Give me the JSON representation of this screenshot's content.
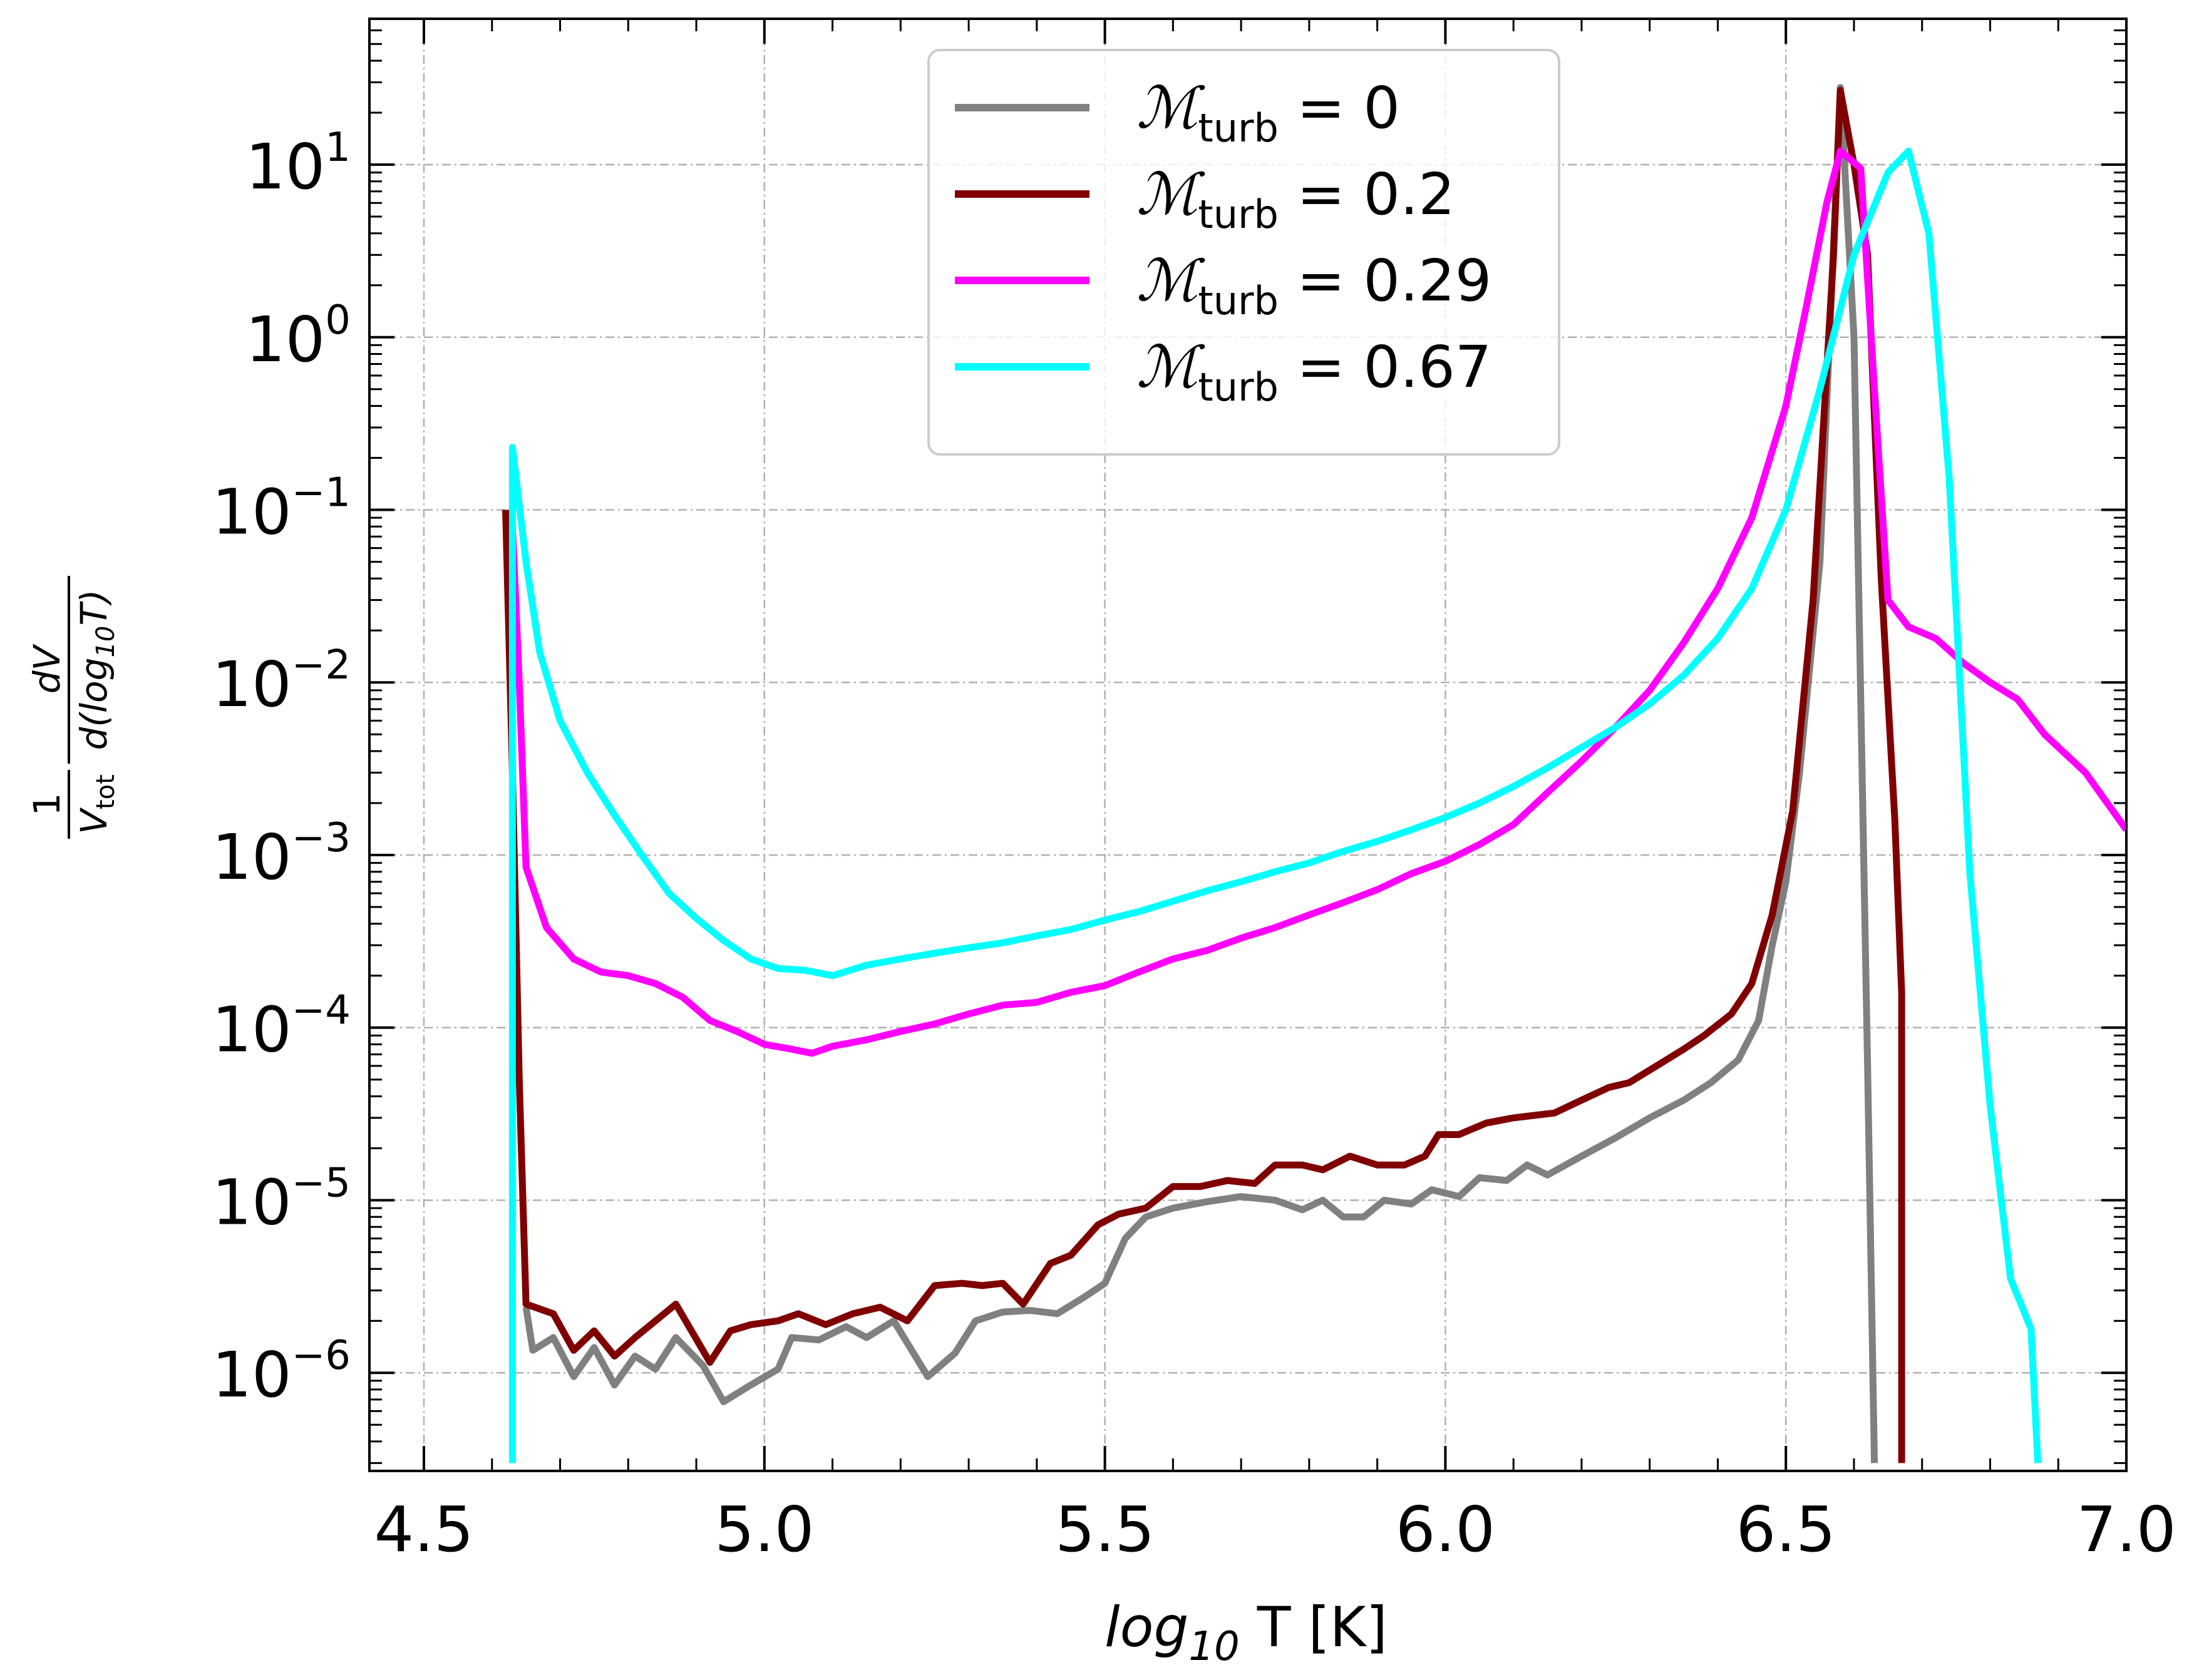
{
  "chart_data": {
    "type": "line",
    "title": "",
    "xlabel": "log10 T [K]",
    "ylabel": "1/V_tot dV/d(log10 T)",
    "xlim": [
      4.42,
      7.0
    ],
    "ylim": [
      2.7e-07,
      70
    ],
    "yscale": "log",
    "grid": true,
    "legend_position": "top-center",
    "x_ticks": [
      4.5,
      5.0,
      5.5,
      6.0,
      6.5,
      7.0
    ],
    "x_tick_labels": [
      "4.5",
      "5.0",
      "5.5",
      "6.0",
      "6.5",
      "7.0"
    ],
    "y_ticks": [
      1e-06,
      1e-05,
      0.0001,
      0.001,
      0.01,
      0.1,
      1,
      10
    ],
    "y_tick_exponents": [
      "−6",
      "−5",
      "−4",
      "−3",
      "−2",
      "−1",
      "0",
      "1"
    ],
    "y_tick_base": "10",
    "series": [
      {
        "name": "M_turb = 0",
        "legend_symbol": "ℳ",
        "legend_sub": "turb",
        "legend_value": "= 0",
        "color": "#808080",
        "points": [
          [
            4.65,
            2.4e-06
          ],
          [
            4.66,
            1.35e-06
          ],
          [
            4.69,
            1.6e-06
          ],
          [
            4.72,
            9.5e-07
          ],
          [
            4.75,
            1.4e-06
          ],
          [
            4.78,
            8.5e-07
          ],
          [
            4.81,
            1.25e-06
          ],
          [
            4.84,
            1.05e-06
          ],
          [
            4.87,
            1.6e-06
          ],
          [
            4.91,
            1.1e-06
          ],
          [
            4.94,
            6.8e-07
          ],
          [
            4.98,
            8.5e-07
          ],
          [
            5.02,
            1.05e-06
          ],
          [
            5.04,
            1.6e-06
          ],
          [
            5.08,
            1.55e-06
          ],
          [
            5.12,
            1.85e-06
          ],
          [
            5.15,
            1.6e-06
          ],
          [
            5.19,
            2e-06
          ],
          [
            5.24,
            9.5e-07
          ],
          [
            5.28,
            1.3e-06
          ],
          [
            5.31,
            2e-06
          ],
          [
            5.35,
            2.25e-06
          ],
          [
            5.39,
            2.3e-06
          ],
          [
            5.43,
            2.2e-06
          ],
          [
            5.47,
            2.75e-06
          ],
          [
            5.5,
            3.3e-06
          ],
          [
            5.53,
            6e-06
          ],
          [
            5.56,
            8e-06
          ],
          [
            5.6,
            9e-06
          ],
          [
            5.65,
            9.8e-06
          ],
          [
            5.7,
            1.05e-05
          ],
          [
            5.75,
            1e-05
          ],
          [
            5.79,
            8.8e-06
          ],
          [
            5.82,
            1e-05
          ],
          [
            5.85,
            8e-06
          ],
          [
            5.88,
            8e-06
          ],
          [
            5.91,
            1e-05
          ],
          [
            5.95,
            9.5e-06
          ],
          [
            5.98,
            1.15e-05
          ],
          [
            6.02,
            1.05e-05
          ],
          [
            6.05,
            1.35e-05
          ],
          [
            6.09,
            1.3e-05
          ],
          [
            6.12,
            1.6e-05
          ],
          [
            6.15,
            1.4e-05
          ],
          [
            6.2,
            1.8e-05
          ],
          [
            6.25,
            2.3e-05
          ],
          [
            6.3,
            3e-05
          ],
          [
            6.35,
            3.8e-05
          ],
          [
            6.39,
            4.8e-05
          ],
          [
            6.43,
            6.5e-05
          ],
          [
            6.46,
            0.00011
          ],
          [
            6.48,
            0.0003
          ],
          [
            6.5,
            0.0007
          ],
          [
            6.52,
            0.003
          ],
          [
            6.55,
            0.05
          ],
          [
            6.58,
            28
          ],
          [
            6.6,
            1.0
          ],
          [
            6.62,
            6e-05
          ],
          [
            6.63,
            3e-07
          ]
        ]
      },
      {
        "name": "M_turb = 0.2",
        "legend_symbol": "ℳ",
        "legend_sub": "turb",
        "legend_value": "= 0.2",
        "color": "#800000",
        "points": [
          [
            4.62,
            0.1
          ],
          [
            4.63,
            0.003
          ],
          [
            4.64,
            5e-05
          ],
          [
            4.65,
            2.5e-06
          ],
          [
            4.69,
            2.2e-06
          ],
          [
            4.72,
            1.35e-06
          ],
          [
            4.75,
            1.75e-06
          ],
          [
            4.78,
            1.25e-06
          ],
          [
            4.81,
            1.6e-06
          ],
          [
            4.84,
            2e-06
          ],
          [
            4.87,
            2.5e-06
          ],
          [
            4.92,
            1.15e-06
          ],
          [
            4.95,
            1.75e-06
          ],
          [
            4.98,
            1.9e-06
          ],
          [
            5.02,
            2e-06
          ],
          [
            5.05,
            2.2e-06
          ],
          [
            5.09,
            1.9e-06
          ],
          [
            5.13,
            2.2e-06
          ],
          [
            5.17,
            2.4e-06
          ],
          [
            5.21,
            2e-06
          ],
          [
            5.25,
            3.2e-06
          ],
          [
            5.29,
            3.3e-06
          ],
          [
            5.32,
            3.2e-06
          ],
          [
            5.35,
            3.3e-06
          ],
          [
            5.38,
            2.5e-06
          ],
          [
            5.42,
            4.3e-06
          ],
          [
            5.45,
            4.8e-06
          ],
          [
            5.49,
            7.2e-06
          ],
          [
            5.52,
            8.3e-06
          ],
          [
            5.56,
            9e-06
          ],
          [
            5.6,
            1.2e-05
          ],
          [
            5.64,
            1.2e-05
          ],
          [
            5.68,
            1.3e-05
          ],
          [
            5.72,
            1.25e-05
          ],
          [
            5.75,
            1.6e-05
          ],
          [
            5.79,
            1.6e-05
          ],
          [
            5.82,
            1.5e-05
          ],
          [
            5.86,
            1.8e-05
          ],
          [
            5.9,
            1.6e-05
          ],
          [
            5.94,
            1.6e-05
          ],
          [
            5.97,
            1.8e-05
          ],
          [
            5.99,
            2.4e-05
          ],
          [
            6.02,
            2.4e-05
          ],
          [
            6.06,
            2.8e-05
          ],
          [
            6.1,
            3e-05
          ],
          [
            6.13,
            3.1e-05
          ],
          [
            6.16,
            3.2e-05
          ],
          [
            6.2,
            3.8e-05
          ],
          [
            6.24,
            4.5e-05
          ],
          [
            6.27,
            4.8e-05
          ],
          [
            6.31,
            6e-05
          ],
          [
            6.35,
            7.5e-05
          ],
          [
            6.38,
            9e-05
          ],
          [
            6.42,
            0.00012
          ],
          [
            6.45,
            0.00018
          ],
          [
            6.48,
            0.00045
          ],
          [
            6.51,
            0.0018
          ],
          [
            6.54,
            0.03
          ],
          [
            6.57,
            3.0
          ],
          [
            6.58,
            27
          ],
          [
            6.6,
            10
          ],
          [
            6.62,
            3.0
          ],
          [
            6.64,
            0.04
          ],
          [
            6.66,
            0.0016
          ],
          [
            6.67,
            0.00016
          ],
          [
            6.67,
            3e-07
          ]
        ]
      },
      {
        "name": "M_turb = 0.29",
        "legend_symbol": "ℳ",
        "legend_sub": "turb",
        "legend_value": "= 0.29",
        "color": "#ff00ff",
        "points": [
          [
            4.63,
            0.08
          ],
          [
            4.64,
            0.01
          ],
          [
            4.65,
            0.00085
          ],
          [
            4.68,
            0.00038
          ],
          [
            4.72,
            0.00025
          ],
          [
            4.76,
            0.00021
          ],
          [
            4.8,
            0.0002
          ],
          [
            4.84,
            0.00018
          ],
          [
            4.88,
            0.00015
          ],
          [
            4.92,
            0.00011
          ],
          [
            4.96,
            9.5e-05
          ],
          [
            5.0,
            8e-05
          ],
          [
            5.04,
            7.5e-05
          ],
          [
            5.07,
            7.1e-05
          ],
          [
            5.1,
            7.8e-05
          ],
          [
            5.15,
            8.5e-05
          ],
          [
            5.2,
            9.5e-05
          ],
          [
            5.25,
            0.000105
          ],
          [
            5.3,
            0.00012
          ],
          [
            5.35,
            0.000135
          ],
          [
            5.4,
            0.00014
          ],
          [
            5.45,
            0.00016
          ],
          [
            5.5,
            0.000175
          ],
          [
            5.55,
            0.00021
          ],
          [
            5.6,
            0.00025
          ],
          [
            5.65,
            0.00028
          ],
          [
            5.7,
            0.00033
          ],
          [
            5.75,
            0.00038
          ],
          [
            5.8,
            0.00045
          ],
          [
            5.85,
            0.00053
          ],
          [
            5.9,
            0.00063
          ],
          [
            5.95,
            0.00078
          ],
          [
            6.0,
            0.00092
          ],
          [
            6.05,
            0.00115
          ],
          [
            6.1,
            0.0015
          ],
          [
            6.15,
            0.0023
          ],
          [
            6.2,
            0.0035
          ],
          [
            6.25,
            0.0055
          ],
          [
            6.3,
            0.009
          ],
          [
            6.35,
            0.017
          ],
          [
            6.4,
            0.035
          ],
          [
            6.45,
            0.09
          ],
          [
            6.5,
            0.4
          ],
          [
            6.53,
            1.5
          ],
          [
            6.56,
            6.0
          ],
          [
            6.58,
            12
          ],
          [
            6.61,
            9.5
          ],
          [
            6.63,
            0.5
          ],
          [
            6.65,
            0.03
          ],
          [
            6.68,
            0.021
          ],
          [
            6.72,
            0.018
          ],
          [
            6.76,
            0.013
          ],
          [
            6.8,
            0.01
          ],
          [
            6.84,
            0.008
          ],
          [
            6.88,
            0.005
          ],
          [
            6.94,
            0.003
          ],
          [
            7.0,
            0.0014
          ]
        ]
      },
      {
        "name": "M_turb = 0.67",
        "legend_symbol": "ℳ",
        "legend_sub": "turb",
        "legend_value": "= 0.67",
        "color": "#00ffff",
        "points": [
          [
            4.63,
            3e-07
          ],
          [
            4.63,
            0.23
          ],
          [
            4.65,
            0.05
          ],
          [
            4.67,
            0.015
          ],
          [
            4.7,
            0.006
          ],
          [
            4.74,
            0.003
          ],
          [
            4.78,
            0.0017
          ],
          [
            4.82,
            0.001
          ],
          [
            4.86,
            0.0006
          ],
          [
            4.9,
            0.00043
          ],
          [
            4.94,
            0.00032
          ],
          [
            4.98,
            0.00025
          ],
          [
            5.02,
            0.00022
          ],
          [
            5.06,
            0.000215
          ],
          [
            5.1,
            0.0002
          ],
          [
            5.15,
            0.00023
          ],
          [
            5.2,
            0.00025
          ],
          [
            5.25,
            0.00027
          ],
          [
            5.3,
            0.00029
          ],
          [
            5.35,
            0.00031
          ],
          [
            5.4,
            0.00034
          ],
          [
            5.45,
            0.00037
          ],
          [
            5.5,
            0.00042
          ],
          [
            5.55,
            0.00047
          ],
          [
            5.6,
            0.00054
          ],
          [
            5.65,
            0.00062
          ],
          [
            5.7,
            0.0007
          ],
          [
            5.75,
            0.0008
          ],
          [
            5.8,
            0.0009
          ],
          [
            5.85,
            0.00105
          ],
          [
            5.9,
            0.0012
          ],
          [
            5.95,
            0.0014
          ],
          [
            6.0,
            0.00165
          ],
          [
            6.05,
            0.002
          ],
          [
            6.1,
            0.0025
          ],
          [
            6.15,
            0.0032
          ],
          [
            6.2,
            0.0042
          ],
          [
            6.25,
            0.0055
          ],
          [
            6.3,
            0.0075
          ],
          [
            6.35,
            0.011
          ],
          [
            6.4,
            0.018
          ],
          [
            6.45,
            0.035
          ],
          [
            6.5,
            0.1
          ],
          [
            6.55,
            0.5
          ],
          [
            6.6,
            3.0
          ],
          [
            6.65,
            9.0
          ],
          [
            6.68,
            12
          ],
          [
            6.71,
            4.0
          ],
          [
            6.74,
            0.15
          ],
          [
            6.77,
            0.0008
          ],
          [
            6.8,
            3.5e-05
          ],
          [
            6.83,
            3.5e-06
          ],
          [
            6.86,
            1.8e-06
          ],
          [
            6.87,
            3e-07
          ]
        ]
      }
    ]
  }
}
